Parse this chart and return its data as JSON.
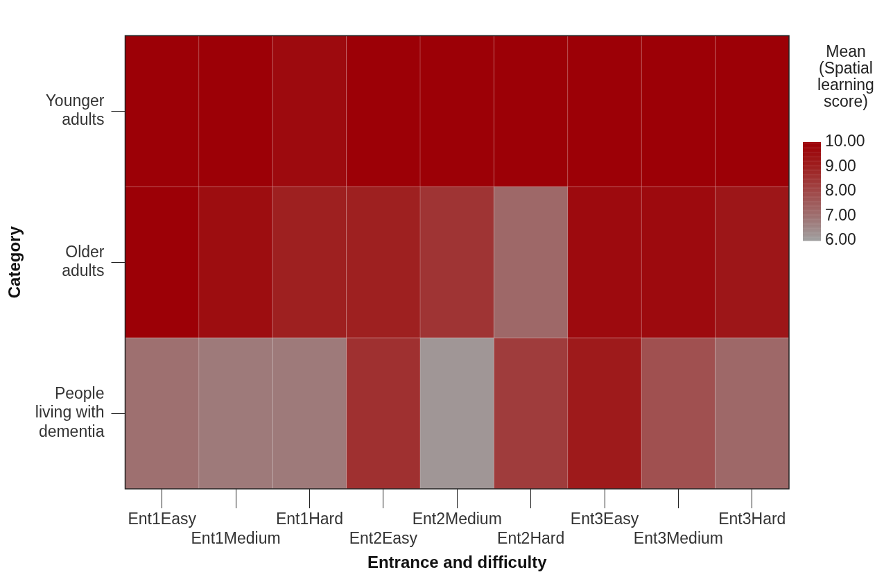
{
  "chart_data": {
    "type": "heatmap",
    "xlabel": "Entrance and difficulty",
    "ylabel": "Category",
    "clabel": "Mean (Spatial learning score)",
    "categories": [
      "Ent1Easy",
      "Ent1Medium",
      "Ent1Hard",
      "Ent2Easy",
      "Ent2Medium",
      "Ent2Hard",
      "Ent3Easy",
      "Ent3Medium",
      "Ent3Hard"
    ],
    "y_categories": [
      "Younger adults",
      "Older adults",
      "People living with dementia"
    ],
    "cells": [
      [
        10,
        10,
        9.7,
        10,
        10,
        10,
        10,
        10,
        10
      ],
      [
        10,
        9.6,
        9.0,
        9.0,
        8.5,
        7.2,
        9.7,
        9.7,
        9.3
      ],
      [
        7.0,
        6.8,
        6.8,
        8.6,
        6.2,
        8.3,
        9.2,
        7.8,
        7.2
      ]
    ],
    "clim": [
      6,
      10
    ],
    "cticks": [
      {
        "value": 10,
        "label": "10.00"
      },
      {
        "value": 9,
        "label": "9.00"
      },
      {
        "value": 8,
        "label": "8.00"
      },
      {
        "value": 7,
        "label": "7.00"
      },
      {
        "value": 6,
        "label": "6.00"
      }
    ],
    "grid": false
  }
}
